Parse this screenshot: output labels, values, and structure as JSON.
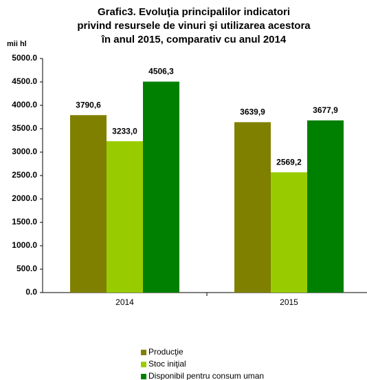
{
  "chart_data": {
    "type": "bar",
    "title": [
      "Grafic3. Evoluţia principalilor indicatori",
      "privind resursele de vinuri şi utilizarea acestora",
      "în anul 2015, comparativ cu anul 2014"
    ],
    "y_axis_label": "mii hl",
    "categories": [
      "2014",
      "2015"
    ],
    "series": [
      {
        "name": "Producţie",
        "color": "#808000",
        "values": [
          3790.6,
          3639.9
        ],
        "value_labels": [
          "3790,6",
          "3639,9"
        ]
      },
      {
        "name": "Stoc iniţial",
        "color": "#99cc00",
        "values": [
          3233.0,
          2569.2
        ],
        "value_labels": [
          "3233,0",
          "2569,2"
        ]
      },
      {
        "name": "Disponibil pentru consum uman",
        "color": "#008000",
        "values": [
          4506.3,
          3677.9
        ],
        "value_labels": [
          "4506,3",
          "3677,9"
        ]
      }
    ],
    "ylim": [
      0,
      5000
    ],
    "yticks": [
      {
        "value": 0,
        "label": "0.0"
      },
      {
        "value": 500,
        "label": "500.0"
      },
      {
        "value": 1000,
        "label": "1000.0"
      },
      {
        "value": 1500,
        "label": "1500.0"
      },
      {
        "value": 2000,
        "label": "2000.0"
      },
      {
        "value": 2500,
        "label": "2500.0"
      },
      {
        "value": 3000,
        "label": "3000.0"
      },
      {
        "value": 3500,
        "label": "3500.0"
      },
      {
        "value": 4000,
        "label": "4000.0"
      },
      {
        "value": 4500,
        "label": "4500.0"
      },
      {
        "value": 5000,
        "label": "5000.0"
      }
    ],
    "grid": false,
    "legend": "bottom"
  }
}
